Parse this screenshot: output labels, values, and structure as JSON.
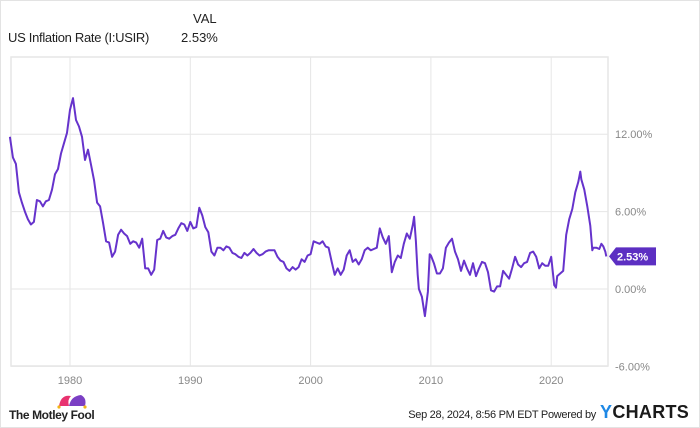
{
  "header": {
    "series_label": "US Inflation Rate (I:USIR)",
    "col_header": "VAL",
    "value": "2.53%"
  },
  "footer": {
    "timestamp": "Sep 28, 2024, 8:56 PM EDT",
    "powered_by": "Powered by",
    "ycharts": "YCHARTS",
    "motley_fool": "The Motley Fool"
  },
  "colors": {
    "line": "#6633cc",
    "badge": "#5c2fc2",
    "grid": "#e6e6e6"
  },
  "chart_data": {
    "type": "line",
    "title": "",
    "xlabel": "",
    "ylabel": "",
    "xlim": [
      1975,
      2024.7
    ],
    "ylim": [
      -6,
      18
    ],
    "grid": true,
    "x_ticks": [
      {
        "v": 1980,
        "label": "1980"
      },
      {
        "v": 1990,
        "label": "1990"
      },
      {
        "v": 2000,
        "label": "2000"
      },
      {
        "v": 2010,
        "label": "2010"
      },
      {
        "v": 2020,
        "label": "2020"
      }
    ],
    "y_ticks": [
      {
        "v": 12,
        "label": "12.00%"
      },
      {
        "v": 6,
        "label": "6.00%"
      },
      {
        "v": 0,
        "label": "0.00%"
      },
      {
        "v": -6,
        "label": "-6.00%"
      }
    ],
    "last_value_label": "2.53%",
    "series": [
      {
        "name": "US Inflation Rate (I:USIR)",
        "x": [
          1975.0,
          1975.25,
          1975.5,
          1975.75,
          1976.0,
          1976.25,
          1976.5,
          1976.75,
          1977.0,
          1977.25,
          1977.5,
          1977.75,
          1978.0,
          1978.25,
          1978.5,
          1978.75,
          1979.0,
          1979.25,
          1979.5,
          1979.75,
          1980.0,
          1980.25,
          1980.5,
          1980.75,
          1981.0,
          1981.25,
          1981.5,
          1981.75,
          1982.0,
          1982.25,
          1982.5,
          1982.75,
          1983.0,
          1983.25,
          1983.5,
          1983.75,
          1984.0,
          1984.25,
          1984.5,
          1984.75,
          1985.0,
          1985.25,
          1985.5,
          1985.75,
          1986.0,
          1986.25,
          1986.5,
          1986.75,
          1987.0,
          1987.25,
          1987.5,
          1987.75,
          1988.0,
          1988.25,
          1988.5,
          1988.75,
          1989.0,
          1989.25,
          1989.5,
          1989.75,
          1990.0,
          1990.25,
          1990.5,
          1990.75,
          1991.0,
          1991.25,
          1991.5,
          1991.75,
          1992.0,
          1992.25,
          1992.5,
          1992.75,
          1993.0,
          1993.25,
          1993.5,
          1993.75,
          1994.0,
          1994.25,
          1994.5,
          1994.75,
          1995.0,
          1995.25,
          1995.5,
          1995.75,
          1996.0,
          1996.25,
          1996.5,
          1996.75,
          1997.0,
          1997.25,
          1997.5,
          1997.75,
          1998.0,
          1998.25,
          1998.5,
          1998.75,
          1999.0,
          1999.25,
          1999.5,
          1999.75,
          2000.0,
          2000.25,
          2000.5,
          2000.75,
          2001.0,
          2001.25,
          2001.5,
          2001.75,
          2002.0,
          2002.25,
          2002.5,
          2002.75,
          2003.0,
          2003.25,
          2003.5,
          2003.75,
          2004.0,
          2004.25,
          2004.5,
          2004.75,
          2005.0,
          2005.25,
          2005.5,
          2005.75,
          2006.0,
          2006.25,
          2006.5,
          2006.75,
          2007.0,
          2007.25,
          2007.5,
          2007.75,
          2008.0,
          2008.25,
          2008.5,
          2008.6,
          2008.75,
          2008.9,
          2009.0,
          2009.25,
          2009.5,
          2009.75,
          2009.9,
          2010.0,
          2010.25,
          2010.5,
          2010.75,
          2011.0,
          2011.25,
          2011.5,
          2011.75,
          2012.0,
          2012.25,
          2012.5,
          2012.75,
          2013.0,
          2013.25,
          2013.5,
          2013.75,
          2014.0,
          2014.25,
          2014.5,
          2014.75,
          2015.0,
          2015.25,
          2015.5,
          2015.75,
          2016.0,
          2016.25,
          2016.5,
          2016.75,
          2017.0,
          2017.25,
          2017.5,
          2017.75,
          2018.0,
          2018.25,
          2018.5,
          2018.75,
          2019.0,
          2019.25,
          2019.5,
          2019.75,
          2020.0,
          2020.25,
          2020.4,
          2020.5,
          2020.75,
          2021.0,
          2021.25,
          2021.5,
          2021.75,
          2022.0,
          2022.25,
          2022.42,
          2022.5,
          2022.75,
          2023.0,
          2023.25,
          2023.42,
          2023.5,
          2023.75,
          2024.0,
          2024.17,
          2024.33,
          2024.5,
          2024.58
        ],
        "y": [
          11.8,
          10.2,
          9.7,
          7.5,
          6.7,
          6.0,
          5.4,
          5.0,
          5.2,
          6.9,
          6.8,
          6.4,
          6.8,
          6.9,
          7.7,
          8.9,
          9.3,
          10.5,
          11.3,
          12.1,
          13.9,
          14.8,
          13.1,
          12.6,
          11.8,
          10.0,
          10.8,
          9.6,
          8.4,
          6.7,
          6.4,
          5.1,
          3.7,
          3.6,
          2.5,
          2.9,
          4.2,
          4.6,
          4.3,
          4.1,
          3.5,
          3.7,
          3.6,
          3.2,
          3.9,
          1.6,
          1.6,
          1.1,
          1.5,
          3.8,
          3.9,
          4.5,
          4.0,
          3.9,
          4.1,
          4.2,
          4.7,
          5.1,
          5.0,
          4.5,
          5.2,
          4.7,
          4.8,
          6.3,
          5.7,
          4.8,
          4.4,
          2.9,
          2.6,
          3.2,
          3.2,
          3.0,
          3.3,
          3.2,
          2.8,
          2.7,
          2.5,
          2.4,
          2.8,
          2.6,
          2.8,
          3.1,
          2.8,
          2.6,
          2.7,
          2.9,
          3.0,
          3.0,
          3.0,
          2.5,
          2.2,
          2.1,
          1.6,
          1.4,
          1.7,
          1.5,
          1.7,
          2.3,
          2.1,
          2.6,
          2.7,
          3.7,
          3.6,
          3.5,
          3.7,
          3.3,
          3.2,
          2.1,
          1.1,
          1.6,
          1.1,
          1.5,
          2.6,
          3.0,
          2.1,
          2.3,
          1.9,
          2.3,
          3.0,
          3.2,
          3.0,
          3.1,
          3.2,
          4.7,
          4.0,
          3.5,
          4.1,
          1.3,
          2.1,
          2.6,
          2.4,
          3.5,
          4.3,
          3.9,
          5.0,
          5.6,
          3.7,
          1.1,
          0.0,
          -0.6,
          -2.1,
          -0.2,
          2.7,
          2.6,
          2.0,
          1.2,
          1.2,
          1.6,
          3.2,
          3.6,
          3.9,
          2.9,
          2.3,
          1.4,
          2.2,
          1.6,
          1.1,
          2.0,
          1.0,
          1.6,
          2.1,
          2.0,
          1.3,
          -0.1,
          -0.2,
          0.2,
          0.2,
          1.4,
          1.1,
          0.8,
          1.6,
          2.5,
          1.9,
          1.7,
          2.0,
          2.1,
          2.8,
          2.9,
          2.5,
          1.6,
          2.0,
          1.8,
          1.8,
          2.5,
          0.3,
          0.1,
          1.0,
          1.2,
          1.4,
          4.2,
          5.4,
          6.2,
          7.5,
          8.3,
          9.1,
          8.5,
          7.7,
          6.4,
          4.9,
          3.0,
          3.2,
          3.2,
          3.1,
          3.5,
          3.3,
          2.9,
          2.53
        ]
      }
    ]
  }
}
